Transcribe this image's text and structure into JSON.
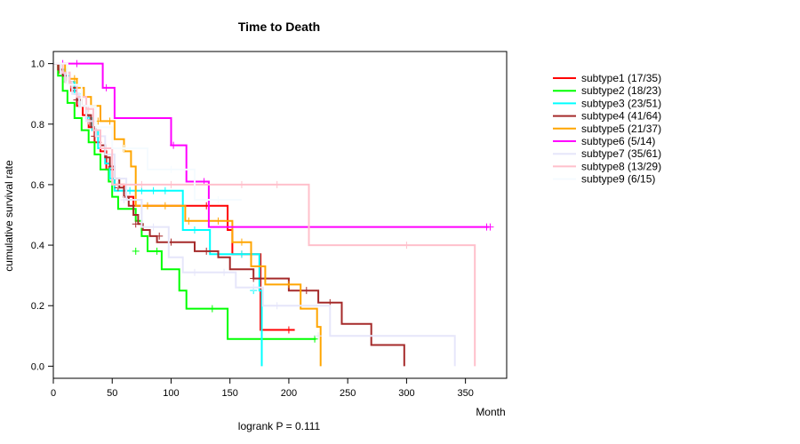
{
  "chart_data": {
    "type": "line",
    "title": "Time to Death",
    "xlabel": "Month",
    "ylabel": "cumulative survival rate",
    "annotation": "logrank P = 0.111",
    "xlim": [
      0,
      385
    ],
    "ylim": [
      -0.04,
      1.04
    ],
    "xticks": [
      0,
      50,
      100,
      150,
      200,
      250,
      300,
      350
    ],
    "yticks": [
      0.0,
      0.2,
      0.4,
      0.6,
      0.8,
      1.0
    ],
    "legend_position": "top-right-outside",
    "series": [
      {
        "name": "subtype1 (17/35)",
        "color": "#ff0000",
        "x": [
          0,
          5,
          10,
          15,
          20,
          25,
          30,
          35,
          40,
          45,
          52,
          60,
          68,
          148,
          152,
          176,
          205
        ],
        "y": [
          1.0,
          0.97,
          0.94,
          0.91,
          0.86,
          0.83,
          0.79,
          0.74,
          0.71,
          0.65,
          0.6,
          0.56,
          0.53,
          0.45,
          0.37,
          0.12,
          0.12
        ],
        "censor_x": [
          12,
          33,
          38,
          47,
          130,
          160,
          200
        ],
        "censor_y": [
          0.94,
          0.79,
          0.74,
          0.65,
          0.53,
          0.37,
          0.12
        ]
      },
      {
        "name": "subtype2 (18/23)",
        "color": "#00ff00",
        "x": [
          0,
          4,
          8,
          12,
          18,
          24,
          30,
          35,
          40,
          47,
          50,
          55,
          70,
          75,
          80,
          92,
          107,
          113,
          148,
          223
        ],
        "y": [
          1.0,
          0.96,
          0.91,
          0.87,
          0.82,
          0.78,
          0.74,
          0.7,
          0.65,
          0.61,
          0.56,
          0.52,
          0.48,
          0.43,
          0.38,
          0.32,
          0.25,
          0.19,
          0.09,
          0.09
        ],
        "censor_x": [
          70,
          88,
          135,
          222
        ],
        "censor_y": [
          0.38,
          0.38,
          0.19,
          0.09
        ]
      },
      {
        "name": "subtype3 (23/51)",
        "color": "#00ffff",
        "x": [
          0,
          6,
          10,
          14,
          18,
          22,
          28,
          33,
          38,
          44,
          48,
          52,
          60,
          110,
          133,
          175,
          177
        ],
        "y": [
          1.0,
          0.98,
          0.96,
          0.94,
          0.9,
          0.86,
          0.82,
          0.78,
          0.72,
          0.67,
          0.62,
          0.58,
          0.58,
          0.45,
          0.37,
          0.25,
          0.0
        ],
        "censor_x": [
          10,
          20,
          30,
          65,
          75,
          85,
          95,
          120,
          140,
          160,
          170
        ],
        "censor_y": [
          0.96,
          0.9,
          0.82,
          0.58,
          0.58,
          0.58,
          0.58,
          0.45,
          0.37,
          0.37,
          0.25
        ]
      },
      {
        "name": "subtype4 (41/64)",
        "color": "#a52a2a",
        "x": [
          0,
          4,
          8,
          12,
          16,
          20,
          24,
          28,
          32,
          36,
          40,
          44,
          48,
          52,
          56,
          60,
          64,
          68,
          72,
          76,
          82,
          88,
          95,
          120,
          140,
          150,
          155,
          170,
          188,
          200,
          225,
          230,
          245,
          270,
          290,
          298
        ],
        "y": [
          1.0,
          0.98,
          0.96,
          0.94,
          0.92,
          0.88,
          0.86,
          0.83,
          0.79,
          0.76,
          0.73,
          0.69,
          0.66,
          0.62,
          0.59,
          0.56,
          0.53,
          0.5,
          0.47,
          0.45,
          0.43,
          0.41,
          0.41,
          0.38,
          0.36,
          0.32,
          0.32,
          0.29,
          0.29,
          0.25,
          0.21,
          0.21,
          0.14,
          0.07,
          0.07,
          0.0
        ],
        "censor_x": [
          20,
          35,
          55,
          70,
          90,
          100,
          130,
          170,
          215,
          235
        ],
        "censor_y": [
          0.88,
          0.76,
          0.59,
          0.47,
          0.43,
          0.41,
          0.38,
          0.29,
          0.25,
          0.21
        ]
      },
      {
        "name": "subtype5 (21/37)",
        "color": "#ffa500",
        "x": [
          0,
          10,
          14,
          20,
          26,
          32,
          40,
          45,
          52,
          60,
          66,
          70,
          104,
          112,
          152,
          168,
          180,
          210,
          224,
          227
        ],
        "y": [
          1.0,
          0.97,
          0.95,
          0.92,
          0.89,
          0.86,
          0.81,
          0.81,
          0.75,
          0.71,
          0.66,
          0.53,
          0.53,
          0.48,
          0.41,
          0.33,
          0.27,
          0.19,
          0.13,
          0.0
        ],
        "censor_x": [
          18,
          38,
          48,
          80,
          95,
          115,
          140,
          160,
          200
        ],
        "censor_y": [
          0.95,
          0.81,
          0.81,
          0.53,
          0.53,
          0.48,
          0.48,
          0.41,
          0.27
        ]
      },
      {
        "name": "subtype6 (5/14)",
        "color": "#ff00ff",
        "x": [
          0,
          42,
          52,
          100,
          113,
          132,
          370
        ],
        "y": [
          1.0,
          0.92,
          0.82,
          0.73,
          0.61,
          0.46,
          0.46
        ],
        "censor_x": [
          8,
          20,
          45,
          102,
          128,
          368,
          371
        ],
        "censor_y": [
          1.0,
          1.0,
          0.92,
          0.73,
          0.61,
          0.46,
          0.46
        ]
      },
      {
        "name": "subtype7 (35/61)",
        "color": "#e6e6fa",
        "x": [
          0,
          6,
          10,
          16,
          22,
          28,
          36,
          44,
          52,
          62,
          75,
          98,
          110,
          130,
          155,
          178,
          200,
          235,
          300,
          340,
          341
        ],
        "y": [
          1.0,
          0.97,
          0.94,
          0.9,
          0.86,
          0.81,
          0.76,
          0.7,
          0.62,
          0.55,
          0.46,
          0.36,
          0.31,
          0.31,
          0.26,
          0.2,
          0.2,
          0.1,
          0.1,
          0.1,
          0.0
        ],
        "censor_x": [
          30,
          60,
          85,
          120,
          145,
          170,
          190,
          225
        ],
        "censor_y": [
          0.81,
          0.55,
          0.46,
          0.31,
          0.31,
          0.26,
          0.2,
          0.1
        ]
      },
      {
        "name": "subtype8 (13/29)",
        "color": "#ffc0cb",
        "x": [
          0,
          8,
          14,
          20,
          28,
          34,
          40,
          50,
          70,
          110,
          150,
          217,
          285,
          300,
          357,
          358
        ],
        "y": [
          1.0,
          0.97,
          0.93,
          0.89,
          0.85,
          0.78,
          0.72,
          0.6,
          0.6,
          0.6,
          0.6,
          0.4,
          0.4,
          0.4,
          0.4,
          0.0
        ],
        "censor_x": [
          15,
          30,
          55,
          75,
          100,
          120,
          160,
          190,
          300
        ],
        "censor_y": [
          0.93,
          0.85,
          0.6,
          0.6,
          0.6,
          0.6,
          0.6,
          0.6,
          0.4
        ]
      },
      {
        "name": "subtype9 (6/15)",
        "color": "#f5fbff",
        "x": [
          0,
          12,
          24,
          36,
          50,
          80,
          120,
          160
        ],
        "y": [
          1.0,
          0.93,
          0.86,
          0.79,
          0.72,
          0.65,
          0.55,
          0.55
        ],
        "censor_x": [
          60,
          100,
          140
        ],
        "censor_y": [
          0.72,
          0.65,
          0.55
        ]
      }
    ]
  }
}
